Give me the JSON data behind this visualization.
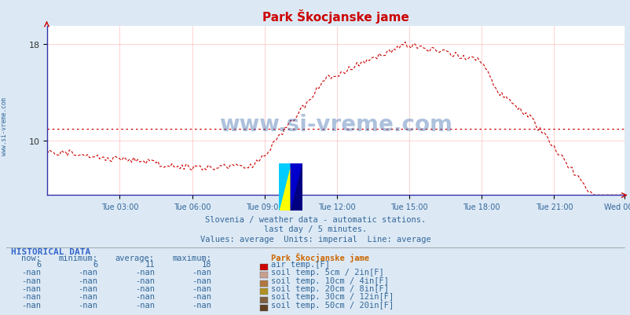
{
  "title": "Park Škocjanske jame",
  "background_color": "#dce9f5",
  "plot_bg_color": "#ffffff",
  "line_color": "#cc0000",
  "avg_line_color": "#cc0000",
  "avg_value": 11,
  "y_ticks": [
    10,
    18
  ],
  "x_labels": [
    "Tue 03:00",
    "Tue 06:00",
    "Tue 09:00",
    "Tue 12:00",
    "Tue 15:00",
    "Tue 18:00",
    "Tue 21:00",
    "Wed 00:00"
  ],
  "subtitle1": "Slovenia / weather data - automatic stations.",
  "subtitle2": "last day / 5 minutes.",
  "subtitle3": "Values: average  Units: imperial  Line: average",
  "watermark": "www.si-vreme.com",
  "side_label": "www.si-vreme.com",
  "hist_title": "HISTORICAL DATA",
  "col_headers": [
    "now:",
    "minimum:",
    "average:",
    "maximum:",
    "Park Škocjanske jame"
  ],
  "hist_data": [
    [
      "6",
      "6",
      "11",
      "18",
      "#cc0000",
      "air temp.[F]"
    ],
    [
      "-nan",
      "-nan",
      "-nan",
      "-nan",
      "#c8a090",
      "soil temp. 5cm / 2in[F]"
    ],
    [
      "-nan",
      "-nan",
      "-nan",
      "-nan",
      "#b07840",
      "soil temp. 10cm / 4in[F]"
    ],
    [
      "-nan",
      "-nan",
      "-nan",
      "-nan",
      "#b09020",
      "soil temp. 20cm / 8in[F]"
    ],
    [
      "-nan",
      "-nan",
      "-nan",
      "-nan",
      "#806040",
      "soil temp. 30cm / 12in[F]"
    ],
    [
      "-nan",
      "-nan",
      "-nan",
      "-nan",
      "#604020",
      "soil temp. 50cm / 20in[F]"
    ]
  ]
}
